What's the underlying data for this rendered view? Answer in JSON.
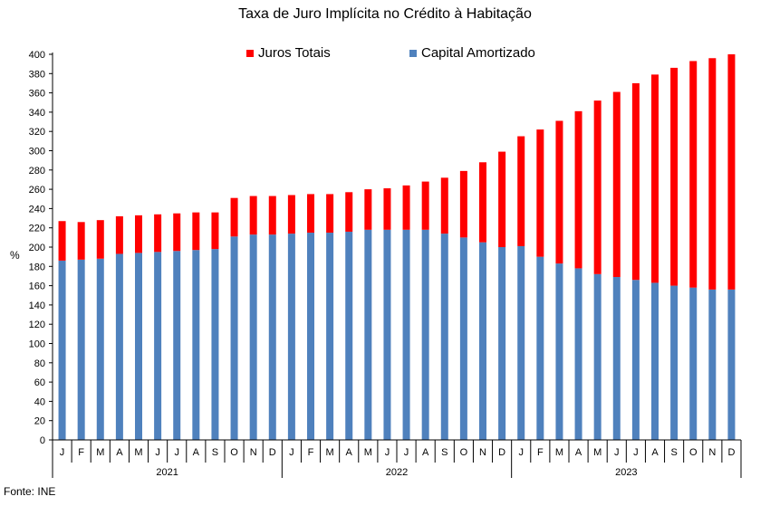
{
  "chart_data": {
    "type": "bar",
    "stacked": true,
    "title": "Taxa de Juro Implícita no Crédito à Habitação",
    "ylabel": "%",
    "xlabel": "",
    "ylim": [
      0,
      400
    ],
    "ytick_step": 20,
    "source": "Fonte: INE",
    "legend_position": "top",
    "categories": [
      "J",
      "F",
      "M",
      "A",
      "M",
      "J",
      "J",
      "A",
      "S",
      "O",
      "N",
      "D",
      "J",
      "F",
      "M",
      "A",
      "M",
      "J",
      "J",
      "A",
      "S",
      "O",
      "N",
      "D",
      "J",
      "F",
      "M",
      "A",
      "M",
      "J",
      "J",
      "A",
      "S",
      "O",
      "N",
      "D"
    ],
    "years": [
      "2021",
      "2022",
      "2023"
    ],
    "series": [
      {
        "name": "Capital Amortizado",
        "color": "#4F81BD",
        "values": [
          186,
          187,
          188,
          193,
          194,
          195,
          196,
          197,
          198,
          211,
          213,
          213,
          214,
          215,
          215,
          216,
          218,
          218,
          218,
          218,
          214,
          210,
          205,
          200,
          201,
          190,
          183,
          178,
          172,
          169,
          166,
          163,
          160,
          158,
          156,
          156
        ]
      },
      {
        "name": "Juros Totais",
        "color": "#FF0000",
        "values": [
          41,
          39,
          40,
          39,
          39,
          39,
          39,
          39,
          38,
          40,
          40,
          40,
          40,
          40,
          40,
          41,
          42,
          43,
          46,
          50,
          58,
          69,
          83,
          99,
          114,
          132,
          148,
          163,
          180,
          192,
          204,
          216,
          226,
          235,
          240,
          244
        ]
      }
    ]
  }
}
